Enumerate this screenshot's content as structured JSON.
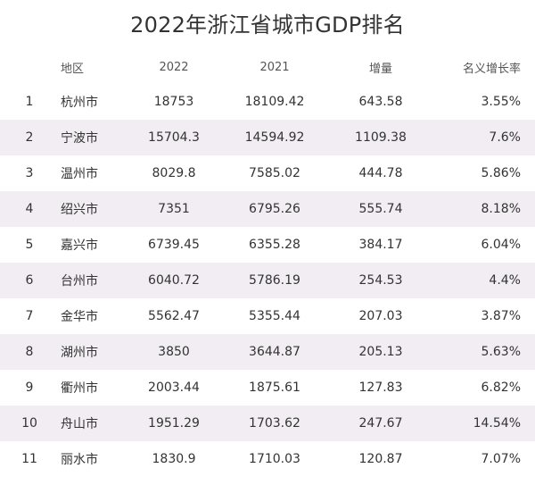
{
  "chart_data": {
    "type": "table",
    "title": "2022年浙江省城市GDP排名",
    "columns": [
      "",
      "地区",
      "2022",
      "2021",
      "增量",
      "名义增长率"
    ],
    "rows": [
      [
        "1",
        "杭州市",
        "18753",
        "18109.42",
        "643.58",
        "3.55%"
      ],
      [
        "2",
        "宁波市",
        "15704.3",
        "14594.92",
        "1109.38",
        "7.6%"
      ],
      [
        "3",
        "温州市",
        "8029.8",
        "7585.02",
        "444.78",
        "5.86%"
      ],
      [
        "4",
        "绍兴市",
        "7351",
        "6795.26",
        "555.74",
        "8.18%"
      ],
      [
        "5",
        "嘉兴市",
        "6739.45",
        "6355.28",
        "384.17",
        "6.04%"
      ],
      [
        "6",
        "台州市",
        "6040.72",
        "5786.19",
        "254.53",
        "4.4%"
      ],
      [
        "7",
        "金华市",
        "5562.47",
        "5355.44",
        "207.03",
        "3.87%"
      ],
      [
        "8",
        "湖州市",
        "3850",
        "3644.87",
        "205.13",
        "5.63%"
      ],
      [
        "9",
        "衢州市",
        "2003.44",
        "1875.61",
        "127.83",
        "6.82%"
      ],
      [
        "10",
        "舟山市",
        "1951.29",
        "1703.62",
        "247.67",
        "14.54%"
      ],
      [
        "11",
        "丽水市",
        "1830.9",
        "1710.03",
        "120.87",
        "7.07%"
      ]
    ]
  }
}
